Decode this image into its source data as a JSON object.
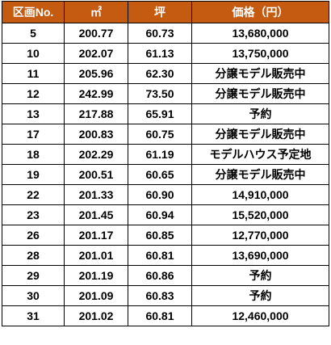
{
  "table": {
    "headers": [
      "区画No.",
      "㎡",
      "坪",
      "価格（円）"
    ],
    "header_bg": "#c55a11",
    "rows": [
      [
        "5",
        "200.77",
        "60.73",
        "13,680,000"
      ],
      [
        "10",
        "202.07",
        "61.13",
        "13,750,000"
      ],
      [
        "11",
        "205.96",
        "62.30",
        "分譲モデル販売中"
      ],
      [
        "12",
        "242.99",
        "73.50",
        "分譲モデル販売中"
      ],
      [
        "13",
        "217.88",
        "65.91",
        "予約"
      ],
      [
        "17",
        "200.83",
        "60.75",
        "分譲モデル販売中"
      ],
      [
        "18",
        "202.29",
        "61.19",
        "モデルハウス予定地"
      ],
      [
        "19",
        "200.51",
        "60.65",
        "分譲モデル販売中"
      ],
      [
        "22",
        "201.33",
        "60.90",
        "14,910,000"
      ],
      [
        "23",
        "201.45",
        "60.94",
        "15,520,000"
      ],
      [
        "26",
        "201.17",
        "60.85",
        "12,770,000"
      ],
      [
        "28",
        "201.01",
        "60.81",
        "13,690,000"
      ],
      [
        "29",
        "201.19",
        "60.86",
        "予約"
      ],
      [
        "30",
        "201.09",
        "60.83",
        "予約"
      ],
      [
        "31",
        "201.02",
        "60.81",
        "12,460,000"
      ]
    ]
  }
}
